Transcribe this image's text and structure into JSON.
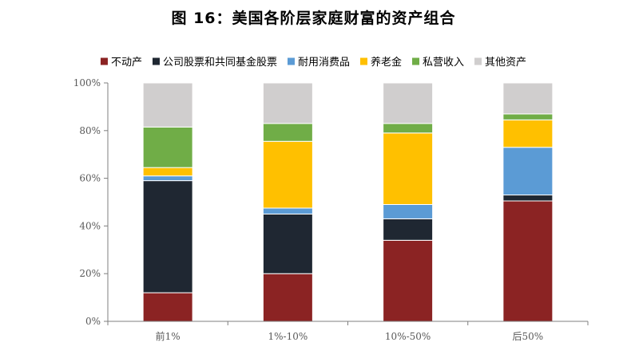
{
  "title": "图 16：美国各阶层家庭财富的资产组合",
  "chart_data": {
    "type": "bar",
    "stacked": true,
    "categories": [
      "前1%",
      "1%-10%",
      "10%-50%",
      "后50%"
    ],
    "yticks": [
      "0%",
      "20%",
      "40%",
      "60%",
      "80%",
      "100%"
    ],
    "ylim": [
      0,
      100
    ],
    "legend_position": "top",
    "series": [
      {
        "name": "不动产",
        "color": "#8B2323",
        "values": [
          12,
          20,
          34,
          50.5
        ]
      },
      {
        "name": "公司股票和共同基金股票",
        "color": "#1F2732",
        "values": [
          47,
          25,
          9,
          2.5
        ]
      },
      {
        "name": "耐用消费品",
        "color": "#5B9BD5",
        "values": [
          2,
          2.5,
          6,
          20
        ]
      },
      {
        "name": "养老金",
        "color": "#FFC000",
        "values": [
          3.5,
          28,
          30,
          11.5
        ]
      },
      {
        "name": "私营收入",
        "color": "#70AD47",
        "values": [
          17,
          7.5,
          4,
          2.5
        ]
      },
      {
        "name": "其他资产",
        "color": "#D0CECE",
        "values": [
          18.5,
          17,
          17,
          13
        ]
      }
    ]
  }
}
